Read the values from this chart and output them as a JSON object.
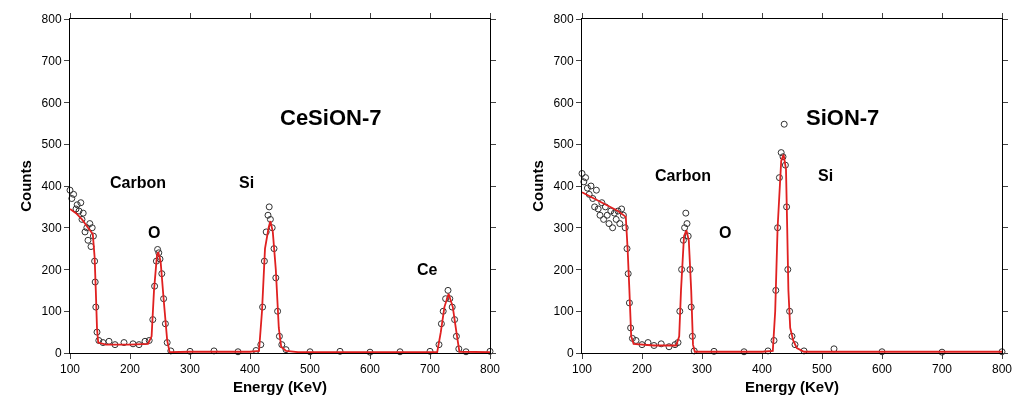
{
  "chart_data": [
    {
      "type": "scatter",
      "xlabel": "Energy (KeV)",
      "ylabel": "Counts",
      "xlim": [
        100,
        800
      ],
      "ylim": [
        0,
        800
      ],
      "xticks": [
        100,
        200,
        300,
        400,
        500,
        600,
        700,
        800
      ],
      "yticks": [
        0,
        100,
        200,
        300,
        400,
        500,
        600,
        700,
        800
      ],
      "grid": false,
      "annotations": [
        "CeSiON-7",
        "Carbon",
        "O",
        "Si",
        "Ce"
      ],
      "series": [
        {
          "type": "scatter",
          "marker": "circle",
          "color": "#333333",
          "x": [
            100,
            103,
            106,
            110,
            112,
            115,
            118,
            120,
            122,
            125,
            128,
            130,
            133,
            135,
            137,
            139,
            141,
            142,
            143,
            145,
            148,
            155,
            165,
            175,
            190,
            205,
            215,
            225,
            232,
            238,
            241,
            244,
            246,
            248,
            250,
            253,
            256,
            259,
            262,
            268,
            300,
            340,
            380,
            410,
            418,
            421,
            424,
            427,
            430,
            432,
            434,
            437,
            440,
            443,
            446,
            449,
            453,
            460,
            500,
            550,
            600,
            650,
            700,
            715,
            719,
            722,
            726,
            730,
            733,
            737,
            741,
            744,
            748,
            760,
            800
          ],
          "values": [
            390,
            370,
            380,
            345,
            355,
            340,
            360,
            320,
            335,
            290,
            300,
            270,
            310,
            255,
            300,
            280,
            220,
            170,
            110,
            50,
            30,
            25,
            28,
            20,
            25,
            22,
            20,
            28,
            30,
            80,
            160,
            220,
            248,
            240,
            225,
            190,
            130,
            70,
            25,
            5,
            4,
            5,
            3,
            6,
            20,
            110,
            220,
            290,
            330,
            350,
            320,
            300,
            250,
            180,
            100,
            40,
            20,
            8,
            3,
            4,
            2,
            3,
            4,
            20,
            70,
            100,
            130,
            150,
            130,
            110,
            80,
            40,
            10,
            3,
            4
          ]
        },
        {
          "type": "line",
          "marker": "none",
          "line_style": "solid",
          "color": "#e02020",
          "x": [
            100,
            110,
            120,
            130,
            138,
            141,
            143,
            145,
            147,
            160,
            200,
            230,
            236,
            240,
            245,
            247,
            251,
            256,
            262,
            266,
            300,
            400,
            415,
            420,
            425,
            431,
            434,
            438,
            443,
            448,
            452,
            460,
            480,
            600,
            712,
            718,
            724,
            731,
            738,
            744,
            749,
            800
          ],
          "values": [
            345,
            335,
            320,
            300,
            285,
            230,
            150,
            60,
            25,
            20,
            20,
            22,
            40,
            150,
            235,
            242,
            220,
            130,
            30,
            2,
            3,
            3,
            5,
            100,
            250,
            300,
            316,
            290,
            200,
            60,
            15,
            5,
            2,
            2,
            2,
            50,
            110,
            142,
            110,
            50,
            3,
            2
          ]
        }
      ]
    },
    {
      "type": "scatter",
      "xlabel": "Energy (KeV)",
      "ylabel": "Counts",
      "xlim": [
        100,
        800
      ],
      "ylim": [
        0,
        800
      ],
      "xticks": [
        100,
        200,
        300,
        400,
        500,
        600,
        700,
        800
      ],
      "yticks": [
        0,
        100,
        200,
        300,
        400,
        500,
        600,
        700,
        800
      ],
      "grid": false,
      "annotations": [
        "SiON-7",
        "Carbon",
        "O",
        "Si"
      ],
      "series": [
        {
          "type": "scatter",
          "marker": "circle",
          "color": "#333333",
          "x": [
            100,
            103,
            106,
            109,
            112,
            115,
            118,
            121,
            124,
            127,
            130,
            133,
            136,
            139,
            142,
            145,
            148,
            151,
            154,
            157,
            160,
            163,
            166,
            169,
            172,
            175,
            177,
            179,
            181,
            184,
            190,
            200,
            210,
            220,
            232,
            245,
            255,
            260,
            263,
            266,
            269,
            271,
            273,
            275,
            277,
            280,
            282,
            284,
            287,
            320,
            370,
            410,
            420,
            423,
            426,
            429,
            432,
            435,
            437,
            439,
            441,
            443,
            446,
            450,
            455,
            470,
            520,
            600,
            700,
            800
          ],
          "values": [
            430,
            410,
            420,
            395,
            380,
            400,
            370,
            350,
            390,
            345,
            330,
            360,
            320,
            350,
            330,
            310,
            340,
            300,
            335,
            320,
            340,
            310,
            345,
            330,
            300,
            250,
            190,
            120,
            60,
            35,
            30,
            20,
            25,
            18,
            22,
            15,
            20,
            25,
            100,
            200,
            270,
            300,
            335,
            310,
            280,
            200,
            110,
            40,
            5,
            4,
            3,
            5,
            30,
            150,
            300,
            420,
            480,
            470,
            548,
            450,
            350,
            200,
            100,
            40,
            20,
            5,
            10,
            3,
            2,
            3
          ]
        },
        {
          "type": "line",
          "marker": "none",
          "line_style": "solid",
          "color": "#e02020",
          "x": [
            100,
            120,
            140,
            160,
            173,
            176,
            179,
            182,
            186,
            220,
            257,
            262,
            265,
            270,
            274,
            278,
            282,
            285,
            288,
            400,
            418,
            422,
            426,
            432,
            436,
            440,
            442,
            444,
            447,
            452,
            458,
            470,
            800
          ],
          "values": [
            385,
            370,
            355,
            340,
            326,
            250,
            150,
            40,
            22,
            18,
            18,
            40,
            150,
            280,
            294,
            270,
            150,
            20,
            3,
            3,
            5,
            100,
            300,
            460,
            475,
            440,
            300,
            150,
            60,
            30,
            12,
            3,
            3
          ]
        }
      ]
    }
  ]
}
